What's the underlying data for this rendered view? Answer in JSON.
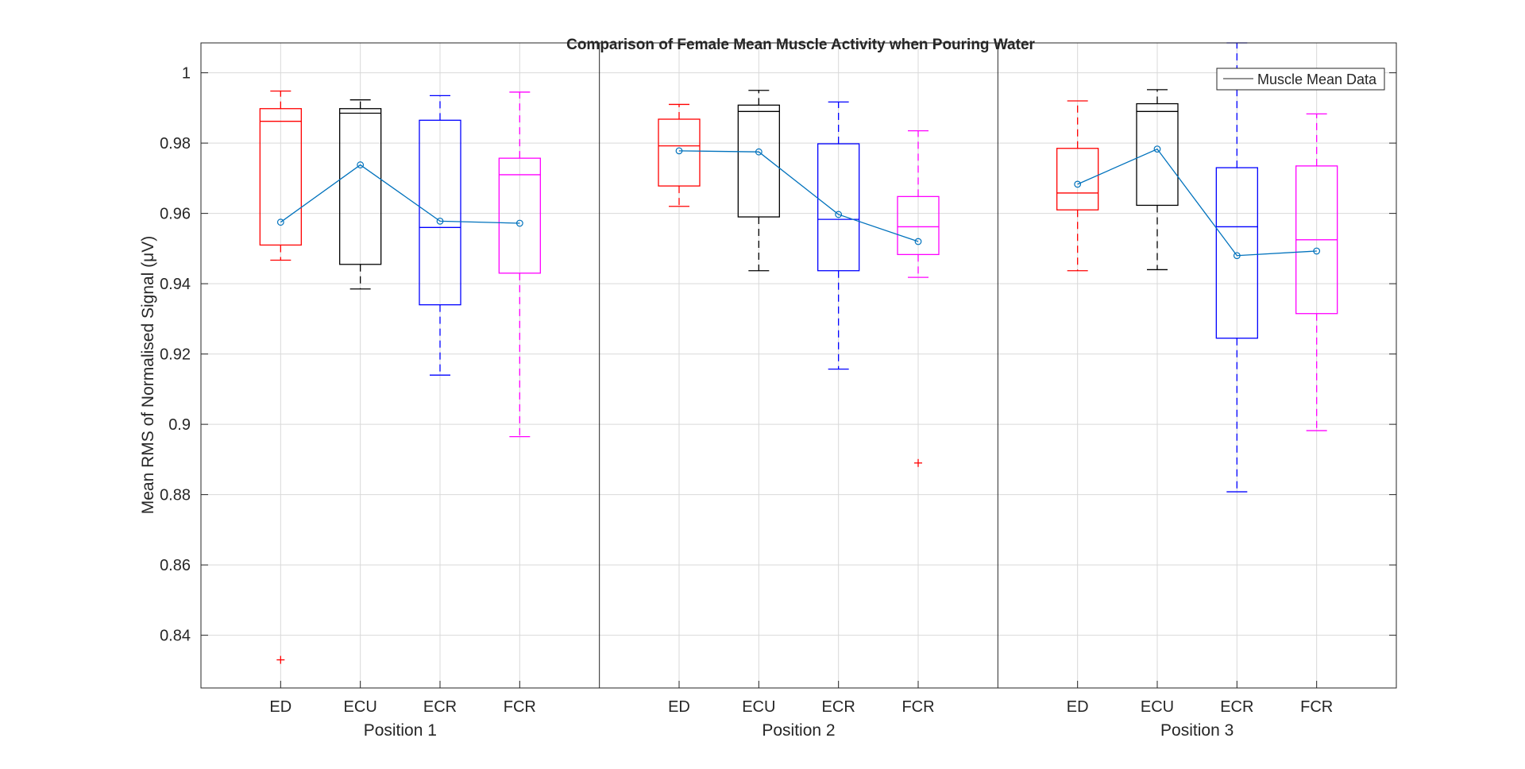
{
  "chart_data": {
    "type": "box",
    "title": "Comparison of Female Mean Muscle Activity when Pouring Water",
    "ylabel": "Mean RMS of Normalised Signal (μV)",
    "xlabel": "",
    "ylim": [
      0.825,
      1.0085
    ],
    "yticks": [
      0.84,
      0.86,
      0.88,
      0.9,
      0.92,
      0.94,
      0.96,
      0.98,
      1
    ],
    "ytick_labels": [
      "0.84",
      "0.86",
      "0.88",
      "0.9",
      "0.92",
      "0.94",
      "0.96",
      "0.98",
      "1"
    ],
    "grid": true,
    "legend": {
      "placement": "top-right",
      "entries": [
        "Muscle Mean Data"
      ]
    },
    "categories": [
      "ED",
      "ECU",
      "ECR",
      "FCR"
    ],
    "colors": {
      "ED": "#ff0000",
      "ECU": "#000000",
      "ECR": "#0000ff",
      "FCR": "#ff00ff",
      "mean_line": "#0072bd",
      "outlier": "#ff0000",
      "grid": "#d9d9d9",
      "axes": "#262626"
    },
    "groups": [
      {
        "label": "Position 1",
        "boxes": [
          {
            "category": "ED",
            "whisker_low": 0.9467,
            "q1": 0.951,
            "median": 0.9862,
            "q3": 0.9898,
            "whisker_high": 0.9948,
            "outliers": [
              0.833
            ]
          },
          {
            "category": "ECU",
            "whisker_low": 0.9385,
            "q1": 0.9455,
            "median": 0.9885,
            "q3": 0.9898,
            "whisker_high": 0.9923,
            "outliers": []
          },
          {
            "category": "ECR",
            "whisker_low": 0.914,
            "q1": 0.934,
            "median": 0.956,
            "q3": 0.9865,
            "whisker_high": 0.9935,
            "outliers": []
          },
          {
            "category": "FCR",
            "whisker_low": 0.8965,
            "q1": 0.943,
            "median": 0.971,
            "q3": 0.9757,
            "whisker_high": 0.9945,
            "outliers": []
          }
        ],
        "means": [
          0.9575,
          0.9738,
          0.9578,
          0.9572
        ]
      },
      {
        "label": "Position 2",
        "boxes": [
          {
            "category": "ED",
            "whisker_low": 0.962,
            "q1": 0.9678,
            "median": 0.9792,
            "q3": 0.9868,
            "whisker_high": 0.991,
            "outliers": []
          },
          {
            "category": "ECU",
            "whisker_low": 0.9437,
            "q1": 0.959,
            "median": 0.989,
            "q3": 0.9908,
            "whisker_high": 0.995,
            "outliers": []
          },
          {
            "category": "ECR",
            "whisker_low": 0.9157,
            "q1": 0.9437,
            "median": 0.9583,
            "q3": 0.9798,
            "whisker_high": 0.9917,
            "outliers": []
          },
          {
            "category": "FCR",
            "whisker_low": 0.9418,
            "q1": 0.9483,
            "median": 0.9562,
            "q3": 0.9648,
            "whisker_high": 0.9835,
            "outliers": [
              0.889
            ]
          }
        ],
        "means": [
          0.9778,
          0.9775,
          0.9597,
          0.952
        ]
      },
      {
        "label": "Position 3",
        "boxes": [
          {
            "category": "ED",
            "whisker_low": 0.9437,
            "q1": 0.961,
            "median": 0.9658,
            "q3": 0.9785,
            "whisker_high": 0.992,
            "outliers": []
          },
          {
            "category": "ECU",
            "whisker_low": 0.944,
            "q1": 0.9623,
            "median": 0.989,
            "q3": 0.9912,
            "whisker_high": 0.9952,
            "outliers": []
          },
          {
            "category": "ECR",
            "whisker_low": 0.8808,
            "q1": 0.9245,
            "median": 0.9562,
            "q3": 0.973,
            "whisker_high": 1.0085,
            "outliers": []
          },
          {
            "category": "FCR",
            "whisker_low": 0.8982,
            "q1": 0.9315,
            "median": 0.9525,
            "q3": 0.9735,
            "whisker_high": 0.9883,
            "outliers": []
          }
        ],
        "means": [
          0.9683,
          0.9783,
          0.948,
          0.9493
        ]
      }
    ]
  }
}
